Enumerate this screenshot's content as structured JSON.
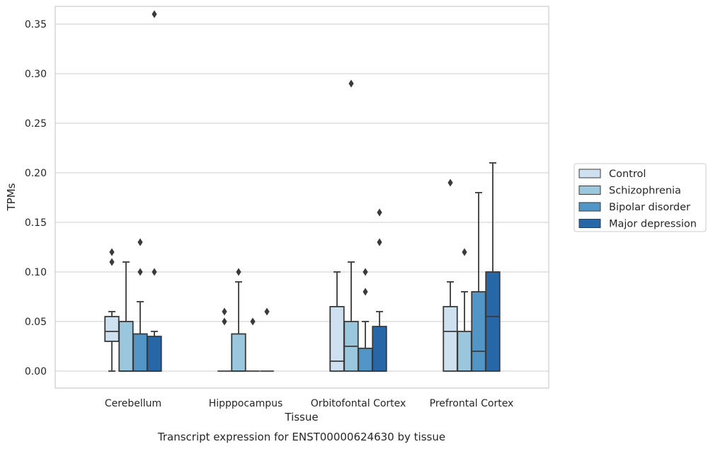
{
  "chart_data": {
    "type": "box",
    "xlabel": "Tissue",
    "ylabel": "TPMs",
    "caption": "Transcript expression for ENST00000624630 by tissue",
    "ylim": [
      -0.018,
      0.378
    ],
    "yticks": [
      "0.00",
      "0.05",
      "0.10",
      "0.15",
      "0.20",
      "0.25",
      "0.30",
      "0.35"
    ],
    "ytick_values": [
      0.0,
      0.05,
      0.1,
      0.15,
      0.2,
      0.25,
      0.3,
      0.35
    ],
    "grid": "horizontal",
    "legend_position": "right",
    "categories": [
      "Cerebellum",
      "Hipppocampus",
      "Orbitofontal Cortex",
      "Prefrontal Cortex"
    ],
    "series": [
      {
        "name": "Control",
        "color": "#cfe0f1",
        "boxes": [
          {
            "whislo": 0.0,
            "q1": 0.03,
            "med": 0.04,
            "q3": 0.055,
            "whishi": 0.06,
            "fliers": [
              0.11,
              0.12
            ]
          },
          {
            "whislo": 0.0,
            "q1": 0.0,
            "med": 0.0,
            "q3": 0.0,
            "whishi": 0.0,
            "fliers": [
              0.05,
              0.06
            ]
          },
          {
            "whislo": 0.0,
            "q1": 0.0,
            "med": 0.01,
            "q3": 0.065,
            "whishi": 0.1,
            "fliers": []
          },
          {
            "whislo": 0.0,
            "q1": 0.0,
            "med": 0.04,
            "q3": 0.065,
            "whishi": 0.09,
            "fliers": [
              0.19
            ]
          }
        ]
      },
      {
        "name": "Schizophrenia",
        "color": "#9ac6de",
        "boxes": [
          {
            "whislo": 0.0,
            "q1": 0.0,
            "med": 0.0,
            "q3": 0.05,
            "whishi": 0.11,
            "fliers": []
          },
          {
            "whislo": 0.0,
            "q1": 0.0,
            "med": 0.0,
            "q3": 0.0375,
            "whishi": 0.09,
            "fliers": [
              0.1
            ]
          },
          {
            "whislo": 0.0,
            "q1": 0.0,
            "med": 0.025,
            "q3": 0.05,
            "whishi": 0.11,
            "fliers": [
              0.29
            ]
          },
          {
            "whislo": 0.0,
            "q1": 0.0,
            "med": 0.0,
            "q3": 0.04,
            "whishi": 0.08,
            "fliers": [
              0.12
            ]
          }
        ]
      },
      {
        "name": "Bipolar disorder",
        "color": "#5296c8",
        "boxes": [
          {
            "whislo": 0.0,
            "q1": 0.0,
            "med": 0.0,
            "q3": 0.0375,
            "whishi": 0.07,
            "fliers": [
              0.1,
              0.13
            ]
          },
          {
            "whislo": 0.0,
            "q1": 0.0,
            "med": 0.0,
            "q3": 0.0,
            "whishi": 0.0,
            "fliers": [
              0.05
            ]
          },
          {
            "whislo": 0.0,
            "q1": 0.0,
            "med": 0.0,
            "q3": 0.023,
            "whishi": 0.05,
            "fliers": [
              0.08,
              0.1
            ]
          },
          {
            "whislo": 0.0,
            "q1": 0.0,
            "med": 0.02,
            "q3": 0.08,
            "whishi": 0.18,
            "fliers": []
          }
        ]
      },
      {
        "name": "Major depression",
        "color": "#2767a8",
        "boxes": [
          {
            "whislo": 0.0,
            "q1": 0.0,
            "med": 0.0,
            "q3": 0.035,
            "whishi": 0.04,
            "fliers": [
              0.1,
              0.36
            ]
          },
          {
            "whislo": 0.0,
            "q1": 0.0,
            "med": 0.0,
            "q3": 0.0,
            "whishi": 0.0,
            "fliers": [
              0.06
            ]
          },
          {
            "whislo": 0.0,
            "q1": 0.0,
            "med": 0.0,
            "q3": 0.045,
            "whishi": 0.06,
            "fliers": [
              0.13,
              0.16
            ]
          },
          {
            "whislo": 0.0,
            "q1": 0.0,
            "med": 0.055,
            "q3": 0.1,
            "whishi": 0.21,
            "fliers": []
          }
        ]
      }
    ]
  }
}
